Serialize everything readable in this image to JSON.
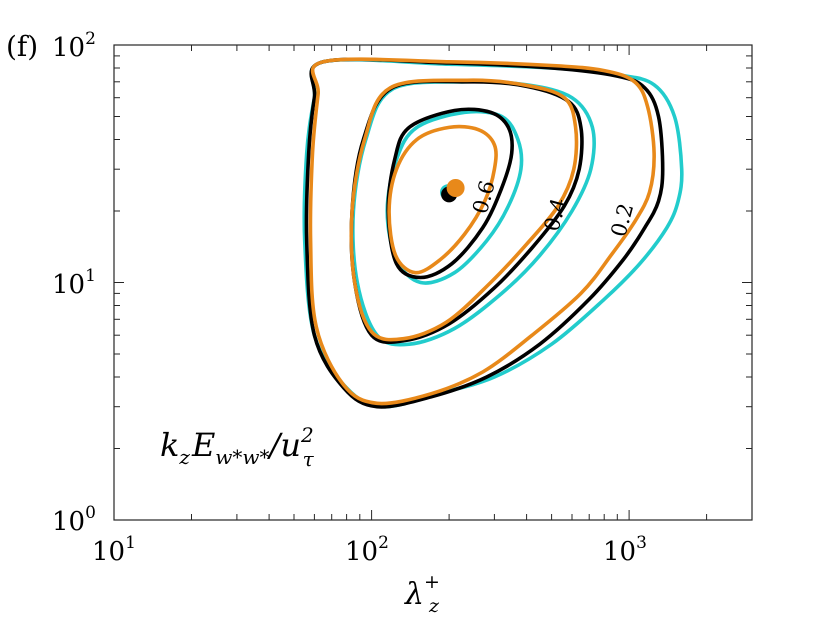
{
  "panel_label": "(f)",
  "chart_data": {
    "type": "contour",
    "x_scale": "log",
    "y_scale": "log",
    "xlim": [
      10,
      3000
    ],
    "ylim": [
      1,
      100
    ],
    "xlabel": {
      "main": "λ",
      "sub": "z",
      "sup": "+"
    },
    "ylabel": "",
    "x_ticks": [
      {
        "base": "10",
        "exp": "1"
      },
      {
        "base": "10",
        "exp": "2"
      },
      {
        "base": "10",
        "exp": "3"
      }
    ],
    "y_ticks": [
      {
        "base": "10",
        "exp": "0"
      },
      {
        "base": "10",
        "exp": "1"
      },
      {
        "base": "10",
        "exp": "2"
      }
    ],
    "annotation": {
      "k": "k",
      "ksub": "z",
      "E": "E",
      "Esub": "w*w*",
      "slash": "/u",
      "usup": "2",
      "usub": "τ"
    },
    "grid": false,
    "series_colors": {
      "cyan": "#22cccc",
      "black": "#000000",
      "orange": "#e8891a"
    },
    "levels": [
      {
        "value": 0.2,
        "label": "0.2",
        "label_at": [
          1000,
          18
        ],
        "contours": {
          "cyan": [
            [
              65,
              85
            ],
            [
              200,
              83
            ],
            [
              500,
              80
            ],
            [
              900,
              75
            ],
            [
              1250,
              68
            ],
            [
              1500,
              50
            ],
            [
              1600,
              30
            ],
            [
              1550,
              22
            ],
            [
              1400,
              17
            ],
            [
              1100,
              12
            ],
            [
              800,
              8.5
            ],
            [
              500,
              5.5
            ],
            [
              300,
              4
            ],
            [
              180,
              3.4
            ],
            [
              110,
              3
            ],
            [
              80,
              3.6
            ],
            [
              60,
              6
            ],
            [
              55,
              15
            ],
            [
              56,
              35
            ],
            [
              60,
              60
            ],
            [
              65,
              85
            ]
          ],
          "black": [
            [
              65,
              85
            ],
            [
              200,
              84
            ],
            [
              500,
              80
            ],
            [
              900,
              74
            ],
            [
              1150,
              66
            ],
            [
              1300,
              50
            ],
            [
              1350,
              30
            ],
            [
              1300,
              22
            ],
            [
              1150,
              17
            ],
            [
              950,
              12.5
            ],
            [
              700,
              8.5
            ],
            [
              450,
              5.5
            ],
            [
              280,
              4
            ],
            [
              170,
              3.3
            ],
            [
              105,
              3
            ],
            [
              78,
              3.6
            ],
            [
              60,
              6
            ],
            [
              56,
              15
            ],
            [
              57,
              35
            ],
            [
              60,
              60
            ],
            [
              65,
              85
            ]
          ],
          "orange": [
            [
              65,
              85
            ],
            [
              200,
              85
            ],
            [
              500,
              82
            ],
            [
              800,
              78
            ],
            [
              1050,
              70
            ],
            [
              1180,
              55
            ],
            [
              1250,
              35
            ],
            [
              1200,
              24
            ],
            [
              1050,
              18
            ],
            [
              850,
              13
            ],
            [
              650,
              9
            ],
            [
              420,
              6
            ],
            [
              270,
              4.2
            ],
            [
              170,
              3.4
            ],
            [
              105,
              3.1
            ],
            [
              78,
              3.7
            ],
            [
              61,
              6.5
            ],
            [
              58,
              15
            ],
            [
              59,
              35
            ],
            [
              62,
              62
            ],
            [
              65,
              85
            ]
          ]
        }
      },
      {
        "value": 0.4,
        "label": "0.4",
        "label_at": [
          550,
          19
        ],
        "contours": {
          "cyan": [
            [
              120,
              65
            ],
            [
              230,
              70
            ],
            [
              400,
              68
            ],
            [
              600,
              60
            ],
            [
              720,
              45
            ],
            [
              710,
              30
            ],
            [
              600,
              20
            ],
            [
              450,
              13
            ],
            [
              320,
              9
            ],
            [
              210,
              6.4
            ],
            [
              140,
              5.5
            ],
            [
              105,
              6
            ],
            [
              88,
              10
            ],
            [
              85,
              20
            ],
            [
              95,
              40
            ],
            [
              120,
              65
            ]
          ],
          "black": [
            [
              120,
              66
            ],
            [
              240,
              70
            ],
            [
              400,
              67
            ],
            [
              580,
              58
            ],
            [
              650,
              45
            ],
            [
              640,
              30
            ],
            [
              560,
              21
            ],
            [
              420,
              14
            ],
            [
              300,
              9.5
            ],
            [
              200,
              6.7
            ],
            [
              135,
              5.7
            ],
            [
              100,
              6
            ],
            [
              86,
              10
            ],
            [
              84,
              20
            ],
            [
              93,
              40
            ],
            [
              120,
              66
            ]
          ],
          "orange": [
            [
              118,
              66
            ],
            [
              235,
              71
            ],
            [
              390,
              68
            ],
            [
              560,
              60
            ],
            [
              620,
              45
            ],
            [
              610,
              30
            ],
            [
              530,
              21
            ],
            [
              400,
              14.5
            ],
            [
              290,
              10
            ],
            [
              195,
              6.8
            ],
            [
              133,
              5.8
            ],
            [
              100,
              6.2
            ],
            [
              86,
              10
            ],
            [
              84,
              20
            ],
            [
              94,
              40
            ],
            [
              118,
              66
            ]
          ]
        }
      },
      {
        "value": 0.6,
        "label": "0.6",
        "label_at": [
          290,
          22.5
        ],
        "contours": {
          "cyan": [
            [
              150,
              45
            ],
            [
              230,
              52
            ],
            [
              320,
              50
            ],
            [
              370,
              40
            ],
            [
              380,
              30
            ],
            [
              340,
              21
            ],
            [
              280,
              15
            ],
            [
              210,
              11
            ],
            [
              155,
              10
            ],
            [
              125,
              12.5
            ],
            [
              115,
              20
            ],
            [
              125,
              33
            ],
            [
              150,
              45
            ]
          ],
          "black": [
            [
              140,
              45
            ],
            [
              210,
              53
            ],
            [
              290,
              52
            ],
            [
              340,
              45
            ],
            [
              350,
              35
            ],
            [
              320,
              25
            ],
            [
              270,
              17
            ],
            [
              205,
              12
            ],
            [
              155,
              10.5
            ],
            [
              125,
              12
            ],
            [
              116,
              20
            ],
            [
              123,
              33
            ],
            [
              140,
              45
            ]
          ],
          "orange": [
            [
              150,
              40
            ],
            [
              200,
              45
            ],
            [
              260,
              44
            ],
            [
              300,
              38
            ],
            [
              300,
              30
            ],
            [
              275,
              22
            ],
            [
              230,
              16
            ],
            [
              185,
              12.5
            ],
            [
              148,
              11
            ],
            [
              124,
              13
            ],
            [
              117,
              20
            ],
            [
              125,
              30
            ],
            [
              150,
              40
            ]
          ]
        }
      }
    ],
    "peaks": {
      "cyan": [
        198,
        24
      ],
      "black": [
        200,
        23.5
      ],
      "orange": [
        212,
        25
      ]
    }
  }
}
